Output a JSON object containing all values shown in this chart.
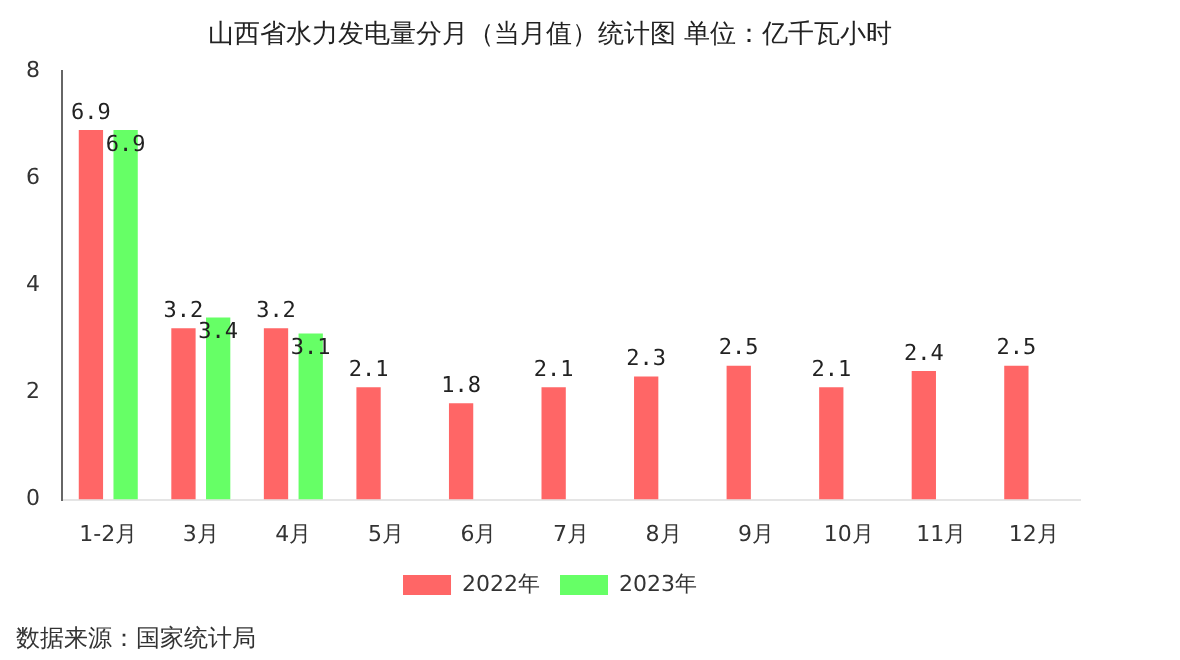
{
  "chart_data": {
    "type": "bar",
    "title": "山西省水力发电量分月（当月值）统计图 单位：亿千瓦小时",
    "categories": [
      "1-2月",
      "3月",
      "4月",
      "5月",
      "6月",
      "7月",
      "8月",
      "9月",
      "10月",
      "11月",
      "12月"
    ],
    "series": [
      {
        "name": "2022年",
        "color": "#ff6666",
        "values": [
          6.9,
          3.2,
          3.2,
          2.1,
          1.8,
          2.1,
          2.3,
          2.5,
          2.1,
          2.4,
          2.5
        ]
      },
      {
        "name": "2023年",
        "color": "#66ff66",
        "values": [
          6.9,
          3.4,
          3.1,
          null,
          null,
          null,
          null,
          null,
          null,
          null,
          null
        ]
      }
    ],
    "ylim": [
      0,
      8
    ],
    "yticks": [
      0,
      2,
      4,
      6,
      8
    ],
    "grid": false,
    "legend": "bottom",
    "data_labels": true,
    "annotations": [
      "数据来源：国家统计局"
    ]
  }
}
